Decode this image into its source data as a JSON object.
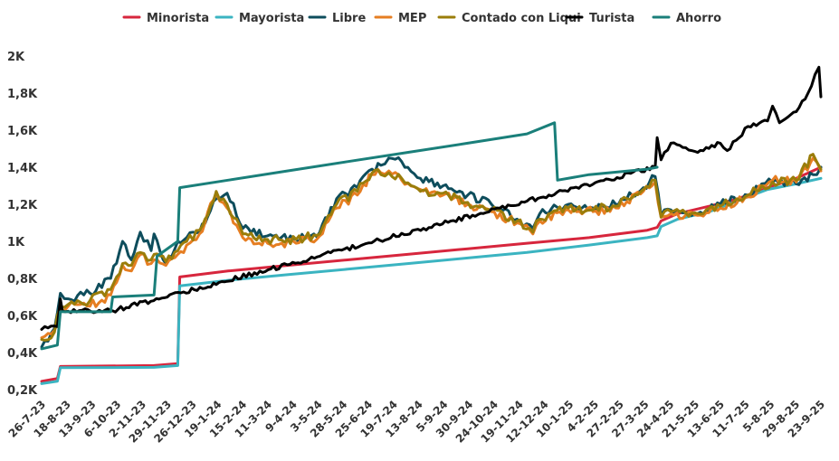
{
  "chart_data": {
    "type": "line",
    "title": "",
    "xlabel": "",
    "ylabel": "",
    "ylim": [
      200,
      2000
    ],
    "yticks": [
      200,
      400,
      600,
      800,
      1000,
      1200,
      1400,
      1600,
      1800,
      2000
    ],
    "ytick_labels": [
      "0,2K",
      "0,4K",
      "0,6K",
      "0,8K",
      "1K",
      "1,2K",
      "1,4K",
      "1,6K",
      "1,8K",
      "2K"
    ],
    "x_start_date": "2023-07-26",
    "x_end_date": "2025-09-23",
    "xtick_labels": [
      "26-7-23",
      "18-8-23",
      "13-9-23",
      "6-10-23",
      "2-11-23",
      "29-11-23",
      "26-12-23",
      "19-1-24",
      "15-2-24",
      "11-3-24",
      "9-4-24",
      "3-5-24",
      "28-5-24",
      "25-6-24",
      "19-7-24",
      "13-8-24",
      "5-9-24",
      "30-9-24",
      "24-10-24",
      "19-11-24",
      "12-12-24",
      "10-1-25",
      "4-2-25",
      "27-2-25",
      "27-3-25",
      "24-4-25",
      "21-5-25",
      "13-6-25",
      "11-7-25",
      "5-8-25",
      "29-8-25",
      "23-9-25"
    ],
    "legend_position": "top",
    "grid": false,
    "series": [
      {
        "name": "Minorista",
        "color": "#d7263d",
        "points": [
          [
            "2023-07-26",
            245
          ],
          [
            "2023-08-11",
            260
          ],
          [
            "2023-08-14",
            325
          ],
          [
            "2023-11-17",
            330
          ],
          [
            "2023-12-11",
            340
          ],
          [
            "2023-12-13",
            808
          ],
          [
            "2024-01-31",
            840
          ],
          [
            "2024-03-31",
            870
          ],
          [
            "2024-05-31",
            900
          ],
          [
            "2024-07-31",
            930
          ],
          [
            "2024-09-30",
            960
          ],
          [
            "2024-11-29",
            990
          ],
          [
            "2025-01-31",
            1020
          ],
          [
            "2025-03-31",
            1060
          ],
          [
            "2025-04-10",
            1075
          ],
          [
            "2025-04-14",
            1110
          ],
          [
            "2025-05-01",
            1150
          ],
          [
            "2025-06-02",
            1190
          ],
          [
            "2025-07-01",
            1230
          ],
          [
            "2025-07-31",
            1290
          ],
          [
            "2025-08-29",
            1340
          ],
          [
            "2025-09-23",
            1400
          ]
        ]
      },
      {
        "name": "Mayorista",
        "color": "#3bb4c1",
        "points": [
          [
            "2023-07-26",
            232
          ],
          [
            "2023-08-11",
            245
          ],
          [
            "2023-08-14",
            318
          ],
          [
            "2023-11-17",
            320
          ],
          [
            "2023-12-11",
            330
          ],
          [
            "2023-12-13",
            760
          ],
          [
            "2024-01-31",
            790
          ],
          [
            "2024-03-31",
            820
          ],
          [
            "2024-05-31",
            850
          ],
          [
            "2024-07-31",
            880
          ],
          [
            "2024-09-30",
            910
          ],
          [
            "2024-11-29",
            940
          ],
          [
            "2025-01-31",
            980
          ],
          [
            "2025-03-31",
            1020
          ],
          [
            "2025-04-10",
            1030
          ],
          [
            "2025-04-14",
            1080
          ],
          [
            "2025-05-01",
            1120
          ],
          [
            "2025-06-02",
            1160
          ],
          [
            "2025-07-01",
            1220
          ],
          [
            "2025-07-31",
            1280
          ],
          [
            "2025-08-29",
            1310
          ],
          [
            "2025-09-23",
            1340
          ]
        ]
      },
      {
        "name": "Libre",
        "color": "#0e4d5c",
        "points": [
          [
            "2023-07-26",
            430
          ],
          [
            "2023-08-08",
            530
          ],
          [
            "2023-08-14",
            720
          ],
          [
            "2023-08-22",
            690
          ],
          [
            "2023-09-13",
            720
          ],
          [
            "2023-10-04",
            800
          ],
          [
            "2023-10-16",
            1000
          ],
          [
            "2023-10-25",
            900
          ],
          [
            "2023-11-03",
            1050
          ],
          [
            "2023-11-14",
            950
          ],
          [
            "2023-11-17",
            1040
          ],
          [
            "2023-11-29",
            880
          ],
          [
            "2023-12-11",
            1000
          ],
          [
            "2023-12-20",
            1020
          ],
          [
            "2024-01-02",
            1050
          ],
          [
            "2024-01-19",
            1230
          ],
          [
            "2024-01-30",
            1260
          ],
          [
            "2024-02-15",
            1070
          ],
          [
            "2024-03-11",
            1030
          ],
          [
            "2024-04-09",
            1010
          ],
          [
            "2024-05-03",
            1050
          ],
          [
            "2024-05-20",
            1230
          ],
          [
            "2024-06-10",
            1290
          ],
          [
            "2024-06-25",
            1390
          ],
          [
            "2024-07-04",
            1410
          ],
          [
            "2024-07-12",
            1450
          ],
          [
            "2024-07-25",
            1430
          ],
          [
            "2024-08-13",
            1340
          ],
          [
            "2024-09-05",
            1300
          ],
          [
            "2024-09-30",
            1250
          ],
          [
            "2024-10-24",
            1200
          ],
          [
            "2024-11-19",
            1120
          ],
          [
            "2024-12-05",
            1070
          ],
          [
            "2024-12-12",
            1150
          ],
          [
            "2025-01-10",
            1200
          ],
          [
            "2025-02-04",
            1180
          ],
          [
            "2025-02-27",
            1200
          ],
          [
            "2025-03-27",
            1290
          ],
          [
            "2025-04-08",
            1350
          ],
          [
            "2025-04-14",
            1140
          ],
          [
            "2025-04-24",
            1170
          ],
          [
            "2025-05-21",
            1150
          ],
          [
            "2025-06-13",
            1200
          ],
          [
            "2025-07-11",
            1250
          ],
          [
            "2025-07-25",
            1310
          ],
          [
            "2025-08-05",
            1320
          ],
          [
            "2025-08-29",
            1310
          ],
          [
            "2025-09-15",
            1360
          ],
          [
            "2025-09-23",
            1400
          ]
        ]
      },
      {
        "name": "MEP",
        "color": "#e67e22",
        "points": [
          [
            "2023-07-26",
            480
          ],
          [
            "2023-08-08",
            520
          ],
          [
            "2023-08-14",
            630
          ],
          [
            "2023-08-22",
            650
          ],
          [
            "2023-09-13",
            650
          ],
          [
            "2023-10-04",
            710
          ],
          [
            "2023-10-16",
            870
          ],
          [
            "2023-10-25",
            840
          ],
          [
            "2023-11-03",
            930
          ],
          [
            "2023-11-14",
            880
          ],
          [
            "2023-11-17",
            900
          ],
          [
            "2023-11-29",
            870
          ],
          [
            "2023-12-11",
            930
          ],
          [
            "2023-12-20",
            980
          ],
          [
            "2024-01-02",
            1040
          ],
          [
            "2024-01-19",
            1260
          ],
          [
            "2024-01-30",
            1180
          ],
          [
            "2024-02-15",
            1020
          ],
          [
            "2024-03-11",
            990
          ],
          [
            "2024-04-09",
            990
          ],
          [
            "2024-05-03",
            1030
          ],
          [
            "2024-05-20",
            1180
          ],
          [
            "2024-06-10",
            1250
          ],
          [
            "2024-06-25",
            1360
          ],
          [
            "2024-07-04",
            1370
          ],
          [
            "2024-07-12",
            1380
          ],
          [
            "2024-07-25",
            1330
          ],
          [
            "2024-08-13",
            1280
          ],
          [
            "2024-09-05",
            1250
          ],
          [
            "2024-09-30",
            1200
          ],
          [
            "2024-10-24",
            1160
          ],
          [
            "2024-11-19",
            1100
          ],
          [
            "2024-12-05",
            1040
          ],
          [
            "2024-12-12",
            1110
          ],
          [
            "2025-01-10",
            1170
          ],
          [
            "2025-02-04",
            1160
          ],
          [
            "2025-02-27",
            1180
          ],
          [
            "2025-03-27",
            1270
          ],
          [
            "2025-04-08",
            1320
          ],
          [
            "2025-04-14",
            1130
          ],
          [
            "2025-04-24",
            1150
          ],
          [
            "2025-05-21",
            1140
          ],
          [
            "2025-06-13",
            1180
          ],
          [
            "2025-07-11",
            1240
          ],
          [
            "2025-07-25",
            1300
          ],
          [
            "2025-08-05",
            1330
          ],
          [
            "2025-08-29",
            1320
          ],
          [
            "2025-09-15",
            1450
          ],
          [
            "2025-09-23",
            1380
          ]
        ]
      },
      {
        "name": "Contado con Liqui",
        "color": "#9a7d0a",
        "points": [
          [
            "2023-07-26",
            470
          ],
          [
            "2023-08-08",
            510
          ],
          [
            "2023-08-14",
            650
          ],
          [
            "2023-08-22",
            660
          ],
          [
            "2023-09-13",
            680
          ],
          [
            "2023-10-04",
            740
          ],
          [
            "2023-10-16",
            880
          ],
          [
            "2023-10-25",
            870
          ],
          [
            "2023-11-03",
            940
          ],
          [
            "2023-11-14",
            900
          ],
          [
            "2023-11-17",
            930
          ],
          [
            "2023-11-29",
            890
          ],
          [
            "2023-12-11",
            950
          ],
          [
            "2023-12-20",
            1000
          ],
          [
            "2024-01-02",
            1060
          ],
          [
            "2024-01-19",
            1270
          ],
          [
            "2024-01-30",
            1200
          ],
          [
            "2024-02-15",
            1040
          ],
          [
            "2024-03-11",
            1010
          ],
          [
            "2024-04-09",
            1010
          ],
          [
            "2024-05-03",
            1040
          ],
          [
            "2024-05-20",
            1200
          ],
          [
            "2024-06-10",
            1270
          ],
          [
            "2024-06-25",
            1370
          ],
          [
            "2024-07-04",
            1360
          ],
          [
            "2024-07-12",
            1370
          ],
          [
            "2024-07-25",
            1340
          ],
          [
            "2024-08-13",
            1270
          ],
          [
            "2024-09-05",
            1260
          ],
          [
            "2024-09-30",
            1210
          ],
          [
            "2024-10-24",
            1170
          ],
          [
            "2024-11-19",
            1110
          ],
          [
            "2024-12-05",
            1050
          ],
          [
            "2024-12-12",
            1120
          ],
          [
            "2025-01-10",
            1180
          ],
          [
            "2025-02-04",
            1170
          ],
          [
            "2025-02-27",
            1190
          ],
          [
            "2025-03-27",
            1280
          ],
          [
            "2025-04-08",
            1330
          ],
          [
            "2025-04-14",
            1130
          ],
          [
            "2025-04-24",
            1160
          ],
          [
            "2025-05-21",
            1150
          ],
          [
            "2025-06-13",
            1190
          ],
          [
            "2025-07-11",
            1250
          ],
          [
            "2025-07-25",
            1300
          ],
          [
            "2025-08-05",
            1320
          ],
          [
            "2025-08-29",
            1330
          ],
          [
            "2025-09-15",
            1470
          ],
          [
            "2025-09-23",
            1390
          ]
        ]
      },
      {
        "name": "Turista",
        "color": "#000000",
        "points": [
          [
            "2023-07-26",
            525
          ],
          [
            "2023-08-11",
            540
          ],
          [
            "2023-08-14",
            690
          ],
          [
            "2023-08-16",
            625
          ],
          [
            "2023-10-04",
            625
          ],
          [
            "2023-10-06",
            625
          ],
          [
            "2025-04-08",
            1400
          ],
          [
            "2025-04-10",
            1560
          ],
          [
            "2025-04-14",
            1440
          ],
          [
            "2025-04-24",
            1530
          ],
          [
            "2025-05-21",
            1480
          ],
          [
            "2025-06-13",
            1530
          ],
          [
            "2025-06-20",
            1490
          ],
          [
            "2025-07-11",
            1620
          ],
          [
            "2025-07-31",
            1650
          ],
          [
            "2025-08-05",
            1730
          ],
          [
            "2025-08-12",
            1640
          ],
          [
            "2025-08-29",
            1700
          ],
          [
            "2025-09-10",
            1800
          ],
          [
            "2025-09-17",
            1900
          ],
          [
            "2025-09-21",
            1940
          ],
          [
            "2025-09-23",
            1780
          ]
        ]
      },
      {
        "name": "Ahorro",
        "color": "#1a7f7a",
        "points": [
          [
            "2023-07-26",
            420
          ],
          [
            "2023-08-11",
            440
          ],
          [
            "2023-08-14",
            620
          ],
          [
            "2023-10-04",
            620
          ],
          [
            "2023-10-06",
            700
          ],
          [
            "2023-11-17",
            710
          ],
          [
            "2023-11-20",
            920
          ],
          [
            "2023-12-11",
            1000
          ],
          [
            "2023-12-13",
            1290
          ],
          [
            "2024-01-31",
            1330
          ],
          [
            "2024-03-31",
            1380
          ],
          [
            "2024-05-31",
            1430
          ],
          [
            "2024-07-31",
            1480
          ],
          [
            "2024-09-30",
            1530
          ],
          [
            "2024-11-29",
            1580
          ],
          [
            "2024-12-27",
            1640
          ],
          [
            "2024-12-30",
            1330
          ],
          [
            "2025-01-31",
            1360
          ],
          [
            "2025-03-31",
            1390
          ],
          [
            "2025-04-10",
            1400
          ]
        ]
      }
    ]
  }
}
